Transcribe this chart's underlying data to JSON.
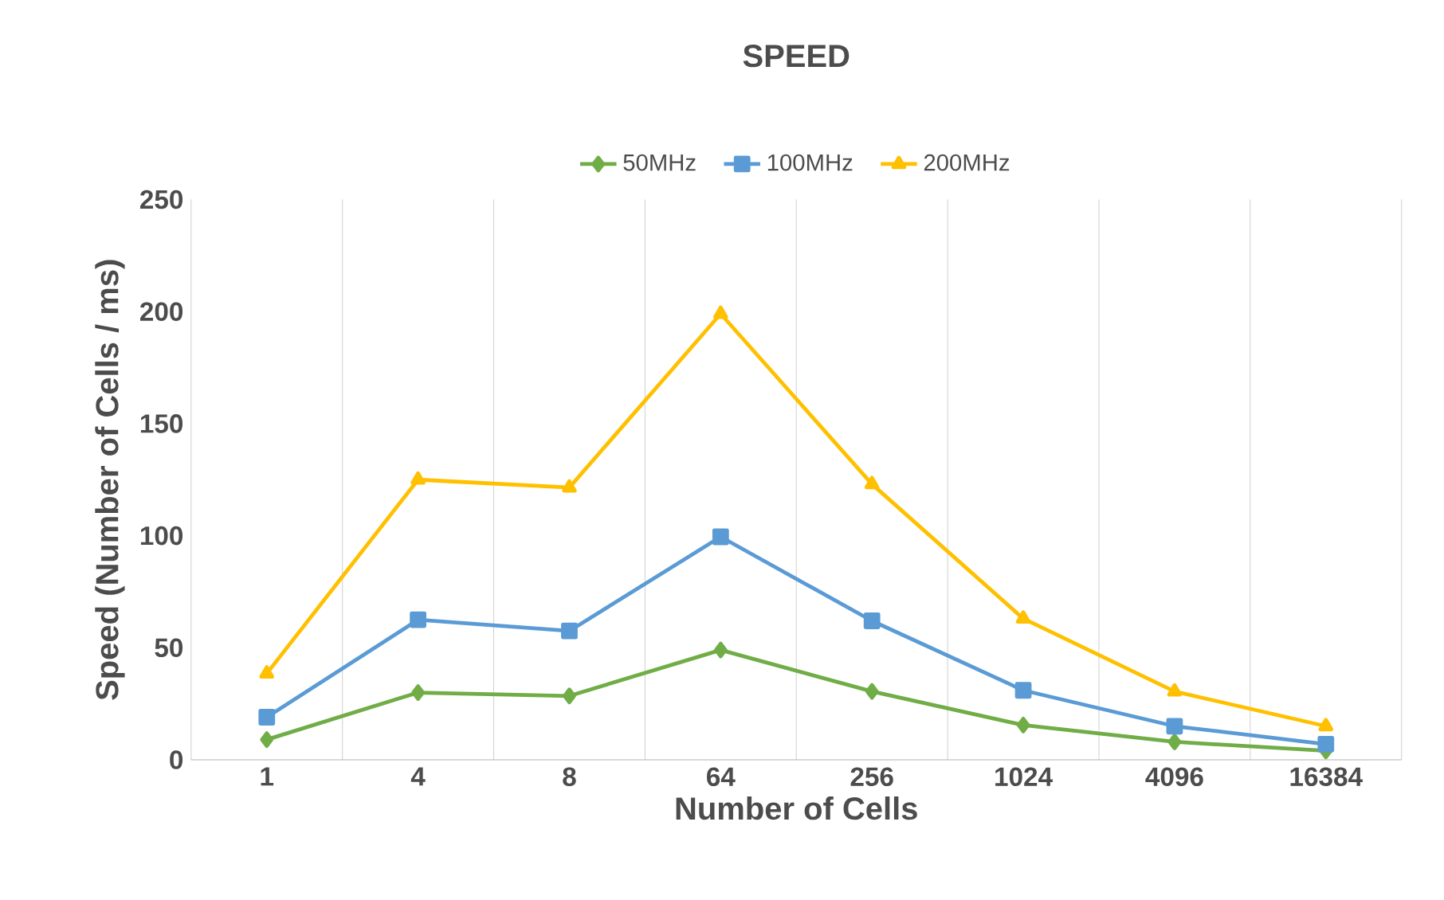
{
  "chart_data": {
    "type": "line",
    "title": "SPEED",
    "xlabel": "Number of Cells",
    "ylabel": "Speed (Number of Cells / ms)",
    "categories": [
      "1",
      "4",
      "8",
      "64",
      "256",
      "1024",
      "4096",
      "16384"
    ],
    "ylim": [
      0,
      250
    ],
    "yticks": [
      0,
      50,
      100,
      150,
      200,
      250
    ],
    "grid": "x",
    "legend": "top",
    "series": [
      {
        "name": "50MHz",
        "color": "#70ad47",
        "marker": "diamond",
        "values": [
          9,
          30,
          28.5,
          49,
          30.5,
          15.5,
          8,
          4
        ]
      },
      {
        "name": "100MHz",
        "color": "#5b9bd5",
        "marker": "square",
        "values": [
          19,
          62.5,
          57.5,
          99.5,
          62,
          31,
          15,
          7
        ]
      },
      {
        "name": "200MHz",
        "color": "#ffc000",
        "marker": "triangle",
        "values": [
          38.5,
          125,
          121.5,
          199,
          123,
          63,
          30.5,
          15
        ]
      }
    ]
  }
}
